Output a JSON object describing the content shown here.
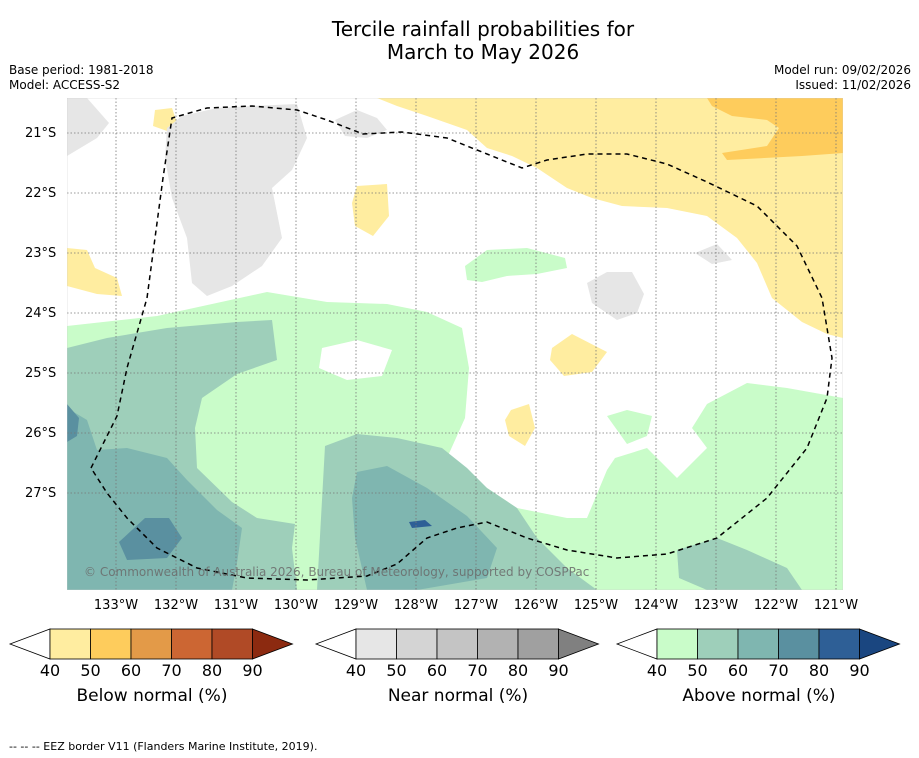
{
  "title": {
    "line1": "Tercile rainfall probabilities for",
    "line2": "March to May 2026"
  },
  "meta_left": {
    "base_period": "Base period: 1981-2018",
    "model": "Model: ACCESS-S2"
  },
  "meta_right": {
    "model_run": "Model run: 09/02/2026",
    "issued": "Issued: 11/02/2026"
  },
  "map": {
    "latitude_labels": [
      "21°S",
      "22°S",
      "23°S",
      "24°S",
      "25°S",
      "26°S",
      "27°S"
    ],
    "longitude_labels": [
      "133°W",
      "132°W",
      "131°W",
      "130°W",
      "129°W",
      "128°W",
      "127°W",
      "126°W",
      "125°W",
      "124°W",
      "123°W",
      "122°W",
      "121°W"
    ],
    "copyright": "© Commonwealth of Australia 2026, Bureau of Meteorology, supported by COSPPac"
  },
  "colorbars": {
    "below": {
      "title": "Below normal (%)",
      "ticks": [
        "40",
        "50",
        "60",
        "70",
        "80",
        "90"
      ],
      "colors": [
        "#ffffff",
        "#ffeda0",
        "#fecc5c",
        "#e39a48",
        "#cc6633",
        "#b04a26",
        "#8c2a10"
      ]
    },
    "near": {
      "title": "Near normal (%)",
      "ticks": [
        "40",
        "50",
        "60",
        "70",
        "80",
        "90"
      ],
      "colors": [
        "#ffffff",
        "#e6e6e6",
        "#d4d4d4",
        "#c4c4c4",
        "#b2b2b2",
        "#a0a0a0",
        "#808080"
      ]
    },
    "above": {
      "title": "Above normal (%)",
      "ticks": [
        "40",
        "50",
        "60",
        "70",
        "80",
        "90"
      ],
      "colors": [
        "#ffffff",
        "#c9fcc9",
        "#9ecfba",
        "#7fb6b0",
        "#5a90a0",
        "#2e5f96",
        "#1a4680"
      ]
    }
  },
  "footer": "--  --  -- EEZ border V11 (Flanders Marine Institute, 2019)."
}
